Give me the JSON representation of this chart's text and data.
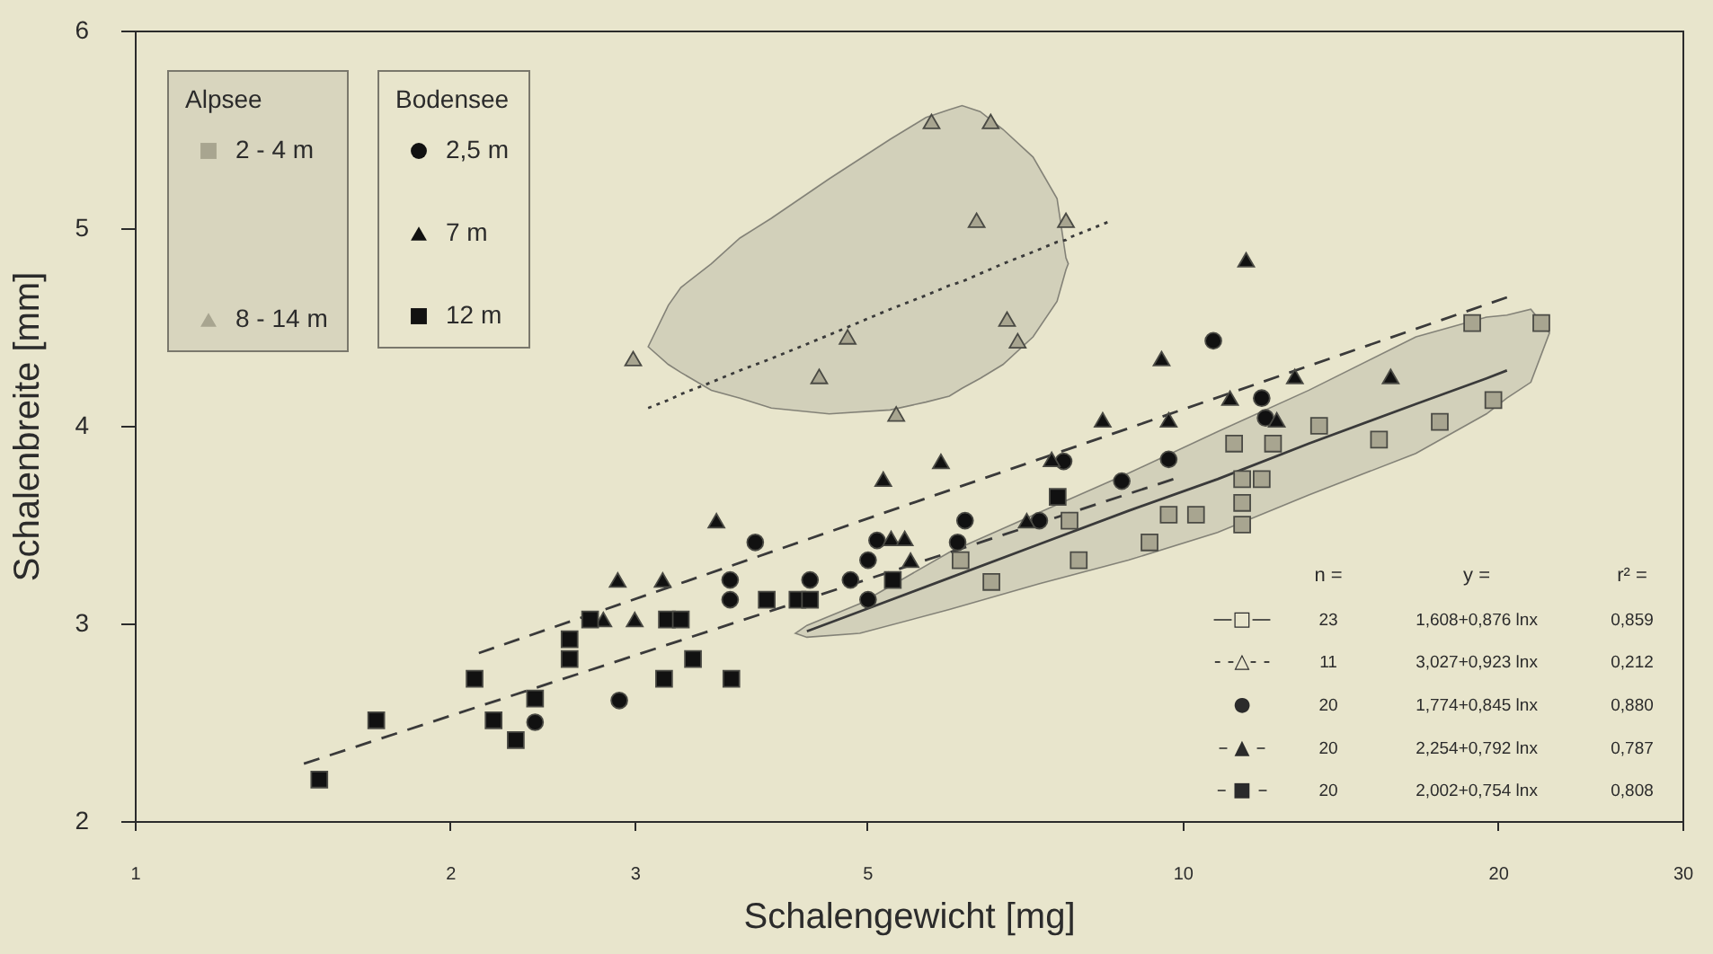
{
  "chart_data": {
    "type": "scatter",
    "xlabel": "Schalengewicht [mg]",
    "ylabel": "Schalenbreite [mm]",
    "log": "x",
    "xlim": [
      1,
      30
    ],
    "xticks": [
      1,
      2,
      3,
      5,
      10,
      20,
      30
    ],
    "ylim": [
      2,
      6
    ],
    "yticks": [
      2,
      3,
      4,
      5,
      6
    ],
    "legend": "top left",
    "annotations": [
      "Alpsee",
      "Bodensee",
      "n =",
      "y =",
      "r² =",
      "—□—",
      "23",
      "1,608+0,876 lnx",
      "0,859",
      "- -△- -",
      "11",
      "3,027+0,923 lnx",
      "0,212",
      "●",
      "20",
      "1,774+0,845 lnx",
      "0,880",
      "– ▲ –",
      "20",
      "2,254+0,792 lnx",
      "0,787",
      "– ■ –",
      "20",
      "2,002+0,754 lnx",
      "0,808"
    ],
    "series": [
      {
        "name": "2 - 4 m",
        "marker": "square",
        "color": "#a8a590",
        "x": [
          6.14,
          6.57,
          7.8,
          7.96,
          9.3,
          9.7,
          10.3,
          11.2,
          12.2,
          11.4,
          11.9,
          11.4,
          11.4,
          13.5,
          15.4,
          17.6,
          19.8,
          18.9,
          22.0
        ],
        "values": [
          3.32,
          3.21,
          3.52,
          3.32,
          3.41,
          3.55,
          3.55,
          3.91,
          3.91,
          3.73,
          3.73,
          3.61,
          3.5,
          4.0,
          3.93,
          4.02,
          4.13,
          4.52,
          4.52
        ]
      },
      {
        "type": "line",
        "line_style": "solid",
        "color": "#3a3a3a",
        "x": [
          4.27,
          4.38,
          4.92,
          5.99,
          7.29,
          8.88,
          10.8,
          13.2,
          16.7,
          19.5,
          20.4,
          21.5,
          22.4
        ],
        "values": [
          null,
          2.96,
          3.06,
          3.23,
          3.4,
          3.57,
          3.73,
          3.91,
          4.11,
          4.24,
          4.28,
          null,
          null
        ],
        "lower": [
          2.95,
          2.93,
          2.95,
          3.07,
          3.2,
          3.32,
          3.46,
          3.65,
          3.86,
          4.06,
          4.14,
          4.22,
          4.47
        ],
        "upper": [
          2.95,
          2.99,
          3.1,
          3.36,
          3.56,
          3.76,
          3.97,
          4.18,
          4.45,
          4.55,
          4.56,
          4.59,
          4.47
        ]
      },
      {
        "name": "8 - 14 m",
        "marker": "triangle",
        "color": "#a8a590",
        "x": [
          2.99,
          4.5,
          4.79,
          5.33,
          5.76,
          6.56,
          6.36,
          7.74,
          6.8,
          6.96
        ],
        "values": [
          4.34,
          4.25,
          4.45,
          4.06,
          5.54,
          5.54,
          5.04,
          5.04,
          4.54,
          4.43
        ]
      },
      {
        "type": "line",
        "line_style": "dotted",
        "color": "#3a3a3a",
        "x": [
          3.09,
          3.23,
          3.32,
          3.55,
          3.78,
          4.05,
          4.6,
          5.26,
          5.69,
          5.99,
          6.16,
          6.41,
          6.74,
          7.2,
          7.59,
          7.74,
          7.78,
          8.48
        ],
        "values": [
          4.09,
          4.13,
          4.16,
          4.22,
          4.28,
          4.34,
          4.46,
          4.59,
          4.66,
          4.71,
          4.73,
          4.77,
          4.82,
          4.88,
          4.93,
          4.94,
          4.95,
          5.03
        ],
        "lower": [
          4.4,
          4.31,
          4.27,
          4.18,
          4.14,
          4.09,
          4.06,
          4.08,
          4.12,
          4.15,
          4.19,
          4.24,
          4.31,
          4.45,
          4.63,
          4.79,
          4.82,
          null
        ],
        "upper": [
          4.4,
          4.61,
          4.7,
          4.82,
          4.95,
          5.05,
          5.25,
          5.45,
          5.56,
          5.6,
          5.62,
          5.59,
          5.5,
          5.36,
          5.15,
          4.85,
          4.82,
          null
        ]
      },
      {
        "name": "2,5 m",
        "marker": "circle",
        "color": "#111111",
        "x": [
          2.41,
          2.9,
          3.7,
          3.7,
          3.91,
          4.41,
          4.82,
          5.01,
          5.01,
          5.11,
          6.1,
          6.2,
          7.3,
          7.7,
          8.75,
          9.7,
          10.7,
          11.9,
          12.0
        ],
        "values": [
          2.5,
          2.61,
          3.12,
          3.22,
          3.41,
          3.22,
          3.22,
          3.12,
          3.32,
          3.42,
          3.41,
          3.52,
          3.52,
          3.82,
          3.72,
          3.83,
          4.43,
          4.14,
          4.04
        ]
      },
      {
        "name": "7 m",
        "marker": "triangle",
        "color": "#111111",
        "x": [
          2.8,
          2.89,
          3.0,
          3.19,
          3.59,
          5.18,
          5.27,
          5.43,
          5.5,
          5.88,
          7.1,
          7.5,
          8.39,
          9.55,
          9.7,
          11.1,
          11.5,
          12.3,
          12.8,
          15.8
        ],
        "values": [
          3.02,
          3.22,
          3.02,
          3.22,
          3.52,
          3.73,
          3.43,
          3.43,
          3.32,
          3.82,
          3.52,
          3.83,
          4.03,
          4.34,
          4.03,
          4.14,
          4.84,
          4.03,
          4.25,
          4.25
        ]
      },
      {
        "type": "line",
        "line_style": "dashed",
        "color": "#3a3a3a",
        "x": [
          2.13,
          20.4
        ],
        "values": [
          2.85,
          4.65
        ]
      },
      {
        "name": "12 m",
        "marker": "square",
        "color": "#111111",
        "x": [
          1.5,
          1.7,
          2.11,
          2.2,
          2.31,
          2.41,
          2.6,
          2.6,
          2.72,
          3.2,
          3.22,
          3.32,
          3.41,
          3.71,
          4.01,
          4.29,
          4.41,
          5.29,
          7.6
        ],
        "values": [
          2.21,
          2.51,
          2.72,
          2.51,
          2.41,
          2.62,
          2.92,
          2.82,
          3.02,
          2.72,
          3.02,
          3.02,
          2.82,
          2.72,
          3.12,
          3.12,
          3.12,
          3.22,
          3.64
        ]
      },
      {
        "type": "line",
        "line_style": "dashed",
        "color": "#3a3a3a",
        "x": [
          1.45,
          9.8
        ],
        "values": [
          2.29,
          3.73
        ]
      }
    ]
  }
}
